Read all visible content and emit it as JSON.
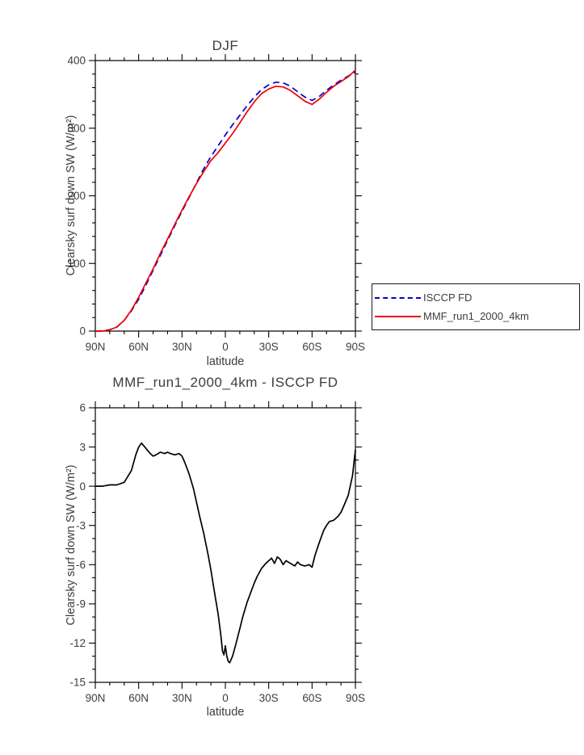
{
  "colors": {
    "axis": "#000000",
    "text": "#3d3d3d",
    "isccp_blue": "#0000cc",
    "mmf_red": "#ee0000",
    "diff_black": "#000000"
  },
  "chart_data": [
    {
      "type": "line",
      "title": "DJF",
      "xlabel": "latitude",
      "ylabel": "Clearsky surf down SW (W/m²)",
      "xlim": [
        90,
        -90
      ],
      "ylim": [
        0,
        400
      ],
      "xtick_values": [
        90,
        60,
        30,
        0,
        -30,
        -60,
        -90
      ],
      "xtick_labels": [
        "90N",
        "60N",
        "30N",
        "0",
        "30S",
        "60S",
        "90S"
      ],
      "x_minor_step": 10,
      "ytick_values": [
        0,
        100,
        200,
        300,
        400
      ],
      "ytick_labels": [
        "0",
        "100",
        "200",
        "300",
        "400"
      ],
      "y_minor_step": 20,
      "legend_position": "outside-right",
      "x": [
        90,
        85,
        80,
        75,
        70,
        65,
        60,
        55,
        50,
        45,
        40,
        35,
        30,
        25,
        20,
        15,
        10,
        5,
        0,
        -5,
        -10,
        -15,
        -20,
        -25,
        -30,
        -35,
        -40,
        -45,
        -50,
        -55,
        -60,
        -65,
        -70,
        -75,
        -80,
        -85,
        -90
      ],
      "series": [
        {
          "name": "ISCCP FD",
          "color": "#0000cc",
          "dashed": true,
          "values": [
            0,
            0,
            2,
            6,
            16,
            30,
            47,
            68,
            90,
            112,
            134,
            156,
            177,
            198,
            219,
            240,
            258,
            274,
            290,
            305,
            319,
            333,
            346,
            357,
            364,
            368,
            367,
            362,
            354,
            346,
            341,
            347,
            356,
            364,
            371,
            377,
            383
          ]
        },
        {
          "name": "MMF_run1_2000_4km",
          "color": "#ee0000",
          "dashed": false,
          "values": [
            0,
            0,
            2,
            6,
            16,
            31,
            50,
            71,
            92,
            115,
            136,
            158,
            179,
            199,
            218,
            236,
            252,
            264,
            278,
            292,
            308,
            324,
            339,
            351,
            358,
            362,
            361,
            356,
            348,
            340,
            335,
            343,
            353,
            362,
            369,
            376,
            386
          ]
        }
      ]
    },
    {
      "type": "line",
      "title": "MMF_run1_2000_4km - ISCCP FD",
      "xlabel": "latitude",
      "ylabel": "Clearsky surf down SW (W/m²)",
      "xlim": [
        90,
        -90
      ],
      "ylim": [
        -15,
        6
      ],
      "xtick_values": [
        90,
        60,
        30,
        0,
        -30,
        -60,
        -90
      ],
      "xtick_labels": [
        "90N",
        "60N",
        "30N",
        "0",
        "30S",
        "60S",
        "90S"
      ],
      "x_minor_step": 10,
      "ytick_values": [
        -15,
        -12,
        -9,
        -6,
        -3,
        0,
        3,
        6
      ],
      "ytick_labels": [
        "-15",
        "-12",
        "-9",
        "-6",
        "-3",
        "0",
        "3",
        "6"
      ],
      "y_minor_step": 1,
      "x": [
        90,
        85,
        80,
        75,
        70,
        65,
        62,
        60,
        58,
        55,
        52,
        50,
        48,
        45,
        42,
        40,
        38,
        35,
        32,
        30,
        28,
        25,
        22,
        20,
        18,
        15,
        12,
        10,
        8,
        5,
        3,
        2,
        1,
        0,
        -1,
        -2,
        -3,
        -5,
        -7,
        -10,
        -12,
        -15,
        -18,
        -20,
        -22,
        -25,
        -28,
        -30,
        -32,
        -34,
        -36,
        -38,
        -40,
        -42,
        -45,
        -48,
        -50,
        -52,
        -55,
        -58,
        -60,
        -62,
        -65,
        -68,
        -70,
        -72,
        -75,
        -78,
        -80,
        -82,
        -85,
        -88,
        -90
      ],
      "series": [
        {
          "name": "MMF_run1_2000_4km - ISCCP FD",
          "color": "#000000",
          "dashed": false,
          "values": [
            0,
            0,
            0.1,
            0.1,
            0.3,
            1.2,
            2.4,
            3.0,
            3.3,
            2.9,
            2.5,
            2.3,
            2.4,
            2.6,
            2.5,
            2.6,
            2.5,
            2.4,
            2.5,
            2.3,
            1.8,
            0.9,
            -0.2,
            -1.2,
            -2.2,
            -3.6,
            -5.2,
            -6.4,
            -7.8,
            -9.8,
            -11.5,
            -12.6,
            -12.9,
            -12.2,
            -13.0,
            -13.4,
            -13.5,
            -13.0,
            -12.2,
            -10.9,
            -10.0,
            -8.9,
            -8.0,
            -7.4,
            -6.9,
            -6.3,
            -5.9,
            -5.7,
            -5.5,
            -5.9,
            -5.4,
            -5.6,
            -6.0,
            -5.7,
            -5.9,
            -6.1,
            -5.8,
            -6.0,
            -6.1,
            -6.0,
            -6.2,
            -5.3,
            -4.3,
            -3.4,
            -3.0,
            -2.7,
            -2.6,
            -2.3,
            -2.0,
            -1.5,
            -0.7,
            0.8,
            2.8
          ]
        }
      ]
    }
  ]
}
